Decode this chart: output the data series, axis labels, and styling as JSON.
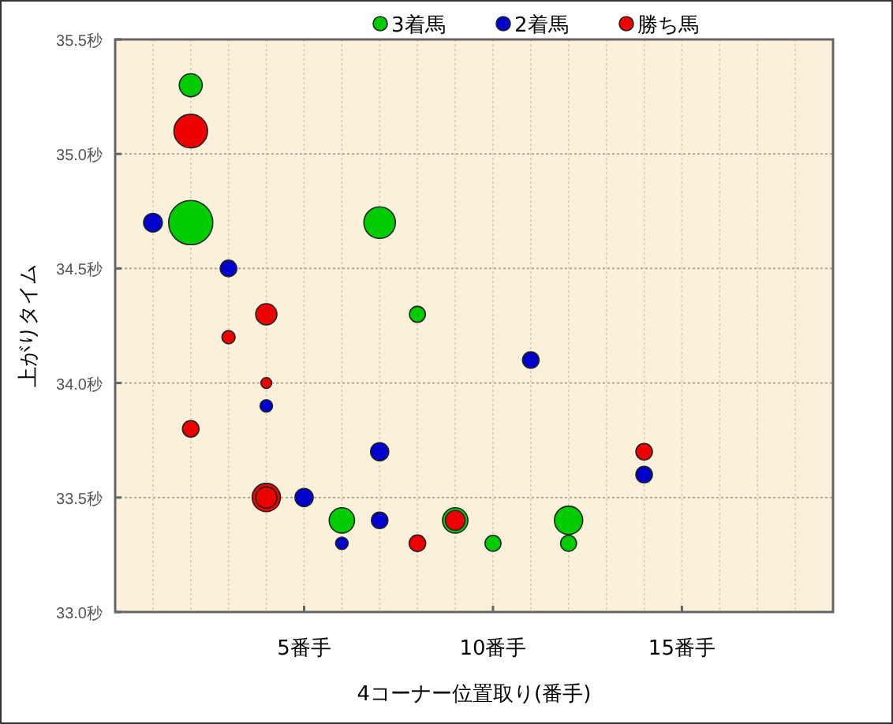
{
  "chart_data": {
    "type": "bubble",
    "xlabel": "4コーナー位置取り(番手)",
    "ylabel": "上がりタイム",
    "xlim": [
      0,
      19
    ],
    "ylim": [
      33.0,
      35.5
    ],
    "xticks": [
      {
        "value": 5,
        "label": "5番手"
      },
      {
        "value": 10,
        "label": "10番手"
      },
      {
        "value": 15,
        "label": "15番手"
      }
    ],
    "yticks": [
      {
        "value": 33.0,
        "label": "33.0秒"
      },
      {
        "value": 33.5,
        "label": "33.5秒"
      },
      {
        "value": 34.0,
        "label": "34.0秒"
      },
      {
        "value": 34.5,
        "label": "34.5秒"
      },
      {
        "value": 35.0,
        "label": "35.0秒"
      },
      {
        "value": 35.5,
        "label": "35.5秒"
      }
    ],
    "grid": true,
    "legend": "top",
    "marker": "circle",
    "series": [
      {
        "name": "3着馬",
        "color": "#00cc00",
        "x": [
          2,
          2,
          7,
          8,
          6,
          9,
          10,
          12,
          12
        ],
        "values": [
          35.3,
          34.7,
          34.7,
          34.3,
          33.4,
          33.4,
          33.3,
          33.4,
          33.3
        ],
        "sizes": [
          0.27,
          1,
          0.51,
          0.13,
          0.33,
          0.33,
          0.13,
          0.41,
          0.13
        ]
      },
      {
        "name": "2着馬",
        "color": "#0000cc",
        "x": [
          1,
          3,
          11,
          4,
          7,
          5,
          6,
          7,
          14
        ],
        "values": [
          34.7,
          34.5,
          34.1,
          33.9,
          33.7,
          33.5,
          33.3,
          33.4,
          33.6
        ],
        "sizes": [
          0.18,
          0.14,
          0.14,
          0.08,
          0.17,
          0.17,
          0.08,
          0.14,
          0.14
        ]
      },
      {
        "name": "勝ち馬",
        "color": "#ee0000",
        "x": [
          2,
          4,
          3,
          4,
          2,
          4,
          4,
          9,
          8,
          14
        ],
        "values": [
          35.1,
          34.3,
          34.2,
          34.0,
          33.8,
          33.5,
          33.5,
          33.4,
          33.3,
          33.7
        ],
        "sizes": [
          0.58,
          0.23,
          0.09,
          0.06,
          0.14,
          0.41,
          0.23,
          0.2,
          0.14,
          0.14
        ]
      }
    ]
  }
}
